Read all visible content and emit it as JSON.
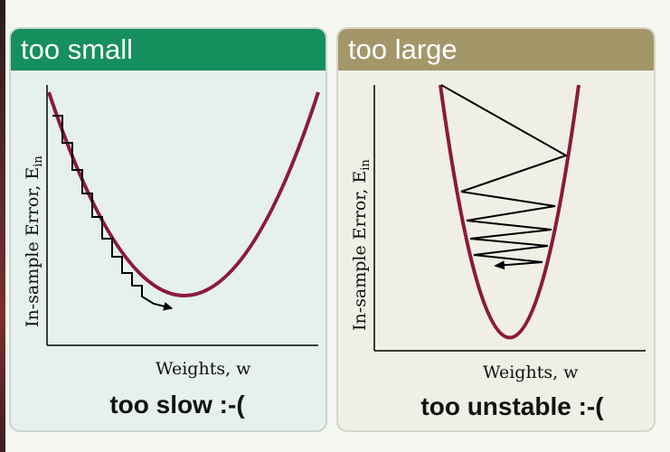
{
  "panels": {
    "small": {
      "header": "too small",
      "ylabel": "In-sample Error, E",
      "ylabel_subscript": "in",
      "xlabel": "Weights, w",
      "caption": "too slow :-("
    },
    "large": {
      "header": "too large",
      "ylabel": "In-sample Error, E",
      "ylabel_subscript": "in",
      "xlabel": "Weights, w",
      "caption": "too unstable :-("
    }
  },
  "colors": {
    "curve": "#8b1a3c",
    "small_header": "#168f5e",
    "large_header": "#a3976a",
    "steps": "#000000"
  }
}
